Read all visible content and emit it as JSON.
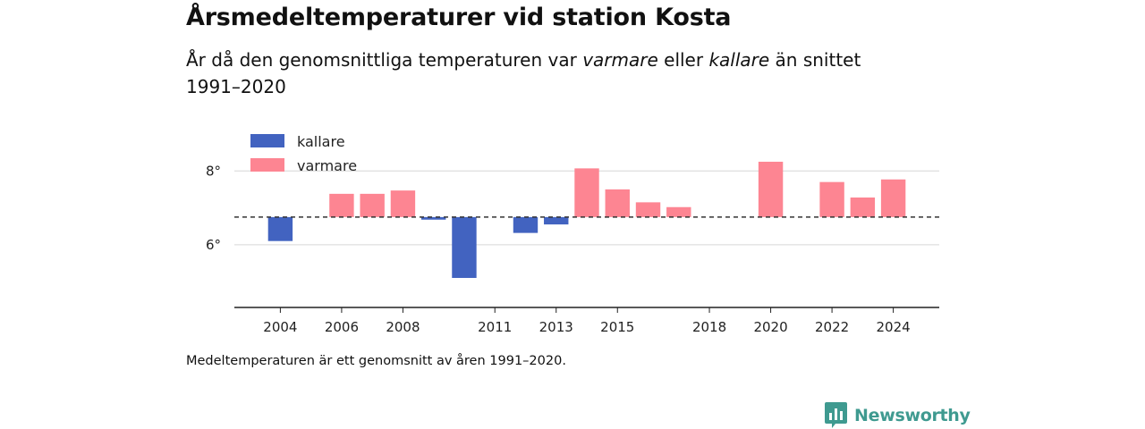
{
  "header": {
    "title": "Årsmedeltemperaturer vid station Kosta",
    "subtitle_pre": "År då den genomsnittliga temperaturen var ",
    "subtitle_warm": "varmare",
    "subtitle_mid": " eller ",
    "subtitle_cold": "kallare",
    "subtitle_post": " än snittet 1991–2020"
  },
  "footnote": "Medeltemperaturen är ett genomsnitt av åren 1991–2020.",
  "brand": {
    "name": "Newsworthy",
    "color": "#3f9a90"
  },
  "chart_data": {
    "type": "bar",
    "baseline": 6.75,
    "ylim": [
      4.3,
      9.0
    ],
    "xlim": [
      2002.5,
      2025.5
    ],
    "yticks": [
      6,
      8
    ],
    "ytick_suffix": "°",
    "xticks": [
      2004,
      2006,
      2008,
      2011,
      2013,
      2015,
      2018,
      2020,
      2022,
      2024
    ],
    "colors": {
      "kallare": "#4263c0",
      "varmare": "#fd8592"
    },
    "legend": [
      {
        "key": "kallare",
        "label": "kallare"
      },
      {
        "key": "varmare",
        "label": "varmare"
      }
    ],
    "years": [
      2004,
      2006,
      2007,
      2008,
      2009,
      2010,
      2012,
      2013,
      2014,
      2015,
      2016,
      2017,
      2020,
      2022,
      2023,
      2024
    ],
    "values": [
      6.1,
      7.38,
      7.38,
      7.47,
      6.68,
      5.1,
      6.32,
      6.55,
      8.07,
      7.5,
      7.15,
      7.02,
      8.25,
      7.7,
      7.28,
      7.77
    ]
  }
}
